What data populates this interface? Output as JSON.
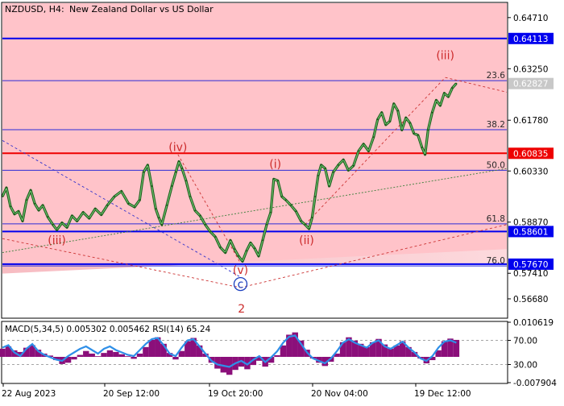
{
  "header": {
    "symbol_timeframe": "NZDUSD, H4:",
    "description": "New Zealand Dollar vs US Dollar"
  },
  "chart_data": {
    "type": "line",
    "price_axis": {
      "range": [
        0.5615,
        0.6512
      ],
      "ticks": [
        "0.64710",
        "0.63250",
        "0.61780",
        "0.60330",
        "0.58870",
        "0.57410",
        "0.56680"
      ],
      "tick_values": [
        0.6471,
        0.6325,
        0.6178,
        0.6033,
        0.5887,
        0.5741,
        0.5668
      ]
    },
    "time_axis": {
      "labels": [
        "22 Aug 2023",
        "20 Sep 12:00",
        "19 Oct 20:00",
        "20 Nov 04:00",
        "19 Dec 12:00"
      ],
      "label_positions": [
        0,
        0.262,
        0.512,
        0.762,
        1.0
      ]
    },
    "current_price": {
      "label": "0.62827",
      "value": 0.62827,
      "color": "#c8c8c8"
    },
    "levels": [
      {
        "label": "0.64113",
        "value": 0.64113,
        "color": "#0000ee"
      },
      {
        "label": "0.60835",
        "value": 0.60835,
        "color": "#ee0000"
      },
      {
        "label": "0.58601",
        "value": 0.58601,
        "color": "#0000ee"
      },
      {
        "label": "0.57670",
        "value": 0.5767,
        "color": "#0000ee"
      }
    ],
    "fibonacci": [
      {
        "label": "23.6",
        "value": 0.6291
      },
      {
        "label": "38.2",
        "value": 0.6151
      },
      {
        "label": "50.0",
        "value": 0.6035
      },
      {
        "label": "61.8",
        "value": 0.5882
      },
      {
        "label": "76.0",
        "value": 0.5762
      }
    ],
    "wave_labels": [
      {
        "text": "(iii)",
        "t": 0.108,
        "price": 0.5827,
        "color": "#cc2b2b",
        "circled": false
      },
      {
        "text": "(iv)",
        "t": 0.348,
        "price": 0.6092,
        "color": "#cc2b2b",
        "circled": false
      },
      {
        "text": "(v)",
        "t": 0.472,
        "price": 0.5742,
        "color": "#cc2b2b",
        "circled": false
      },
      {
        "text": "c",
        "t": 0.472,
        "price": 0.5701,
        "color": "#1a3fbf",
        "circled": true
      },
      {
        "text": "2",
        "t": 0.474,
        "price": 0.5631,
        "color": "#cc2b2b",
        "circled": false
      },
      {
        "text": "(i)",
        "t": 0.541,
        "price": 0.6044,
        "color": "#cc2b2b",
        "circled": false
      },
      {
        "text": "(ii)",
        "t": 0.603,
        "price": 0.5827,
        "color": "#cc2b2b",
        "circled": false
      },
      {
        "text": "(iii)",
        "t": 0.878,
        "price": 0.6355,
        "color": "#cc2b2b",
        "circled": false
      }
    ],
    "price_series": [
      [
        0.0,
        0.596
      ],
      [
        0.008,
        0.5985
      ],
      [
        0.016,
        0.5932
      ],
      [
        0.024,
        0.591
      ],
      [
        0.032,
        0.5918
      ],
      [
        0.04,
        0.589
      ],
      [
        0.048,
        0.595
      ],
      [
        0.056,
        0.5978
      ],
      [
        0.064,
        0.594
      ],
      [
        0.072,
        0.5921
      ],
      [
        0.08,
        0.5935
      ],
      [
        0.09,
        0.5902
      ],
      [
        0.1,
        0.588
      ],
      [
        0.108,
        0.5865
      ],
      [
        0.118,
        0.5885
      ],
      [
        0.128,
        0.5872
      ],
      [
        0.138,
        0.5905
      ],
      [
        0.148,
        0.589
      ],
      [
        0.16,
        0.5915
      ],
      [
        0.172,
        0.5898
      ],
      [
        0.184,
        0.5925
      ],
      [
        0.196,
        0.5908
      ],
      [
        0.208,
        0.5935
      ],
      [
        0.222,
        0.596
      ],
      [
        0.236,
        0.5975
      ],
      [
        0.25,
        0.594
      ],
      [
        0.262,
        0.593
      ],
      [
        0.272,
        0.595
      ],
      [
        0.28,
        0.603
      ],
      [
        0.288,
        0.605
      ],
      [
        0.296,
        0.599
      ],
      [
        0.304,
        0.5925
      ],
      [
        0.31,
        0.59
      ],
      [
        0.316,
        0.588
      ],
      [
        0.326,
        0.5935
      ],
      [
        0.336,
        0.599
      ],
      [
        0.344,
        0.603
      ],
      [
        0.35,
        0.606
      ],
      [
        0.356,
        0.604
      ],
      [
        0.364,
        0.6005
      ],
      [
        0.372,
        0.596
      ],
      [
        0.382,
        0.592
      ],
      [
        0.392,
        0.5905
      ],
      [
        0.402,
        0.588
      ],
      [
        0.412,
        0.586
      ],
      [
        0.422,
        0.5845
      ],
      [
        0.432,
        0.5815
      ],
      [
        0.442,
        0.58
      ],
      [
        0.452,
        0.5835
      ],
      [
        0.46,
        0.581
      ],
      [
        0.468,
        0.579
      ],
      [
        0.476,
        0.5775
      ],
      [
        0.484,
        0.5805
      ],
      [
        0.492,
        0.5828
      ],
      [
        0.5,
        0.5812
      ],
      [
        0.508,
        0.579
      ],
      [
        0.516,
        0.5835
      ],
      [
        0.524,
        0.588
      ],
      [
        0.532,
        0.5915
      ],
      [
        0.538,
        0.601
      ],
      [
        0.546,
        0.6005
      ],
      [
        0.554,
        0.596
      ],
      [
        0.562,
        0.595
      ],
      [
        0.572,
        0.5935
      ],
      [
        0.582,
        0.5918
      ],
      [
        0.592,
        0.589
      ],
      [
        0.6,
        0.588
      ],
      [
        0.608,
        0.5868
      ],
      [
        0.614,
        0.59
      ],
      [
        0.62,
        0.596
      ],
      [
        0.626,
        0.602
      ],
      [
        0.632,
        0.605
      ],
      [
        0.64,
        0.604
      ],
      [
        0.648,
        0.599
      ],
      [
        0.656,
        0.603
      ],
      [
        0.666,
        0.605
      ],
      [
        0.676,
        0.6065
      ],
      [
        0.686,
        0.6035
      ],
      [
        0.696,
        0.6048
      ],
      [
        0.706,
        0.609
      ],
      [
        0.716,
        0.611
      ],
      [
        0.726,
        0.609
      ],
      [
        0.736,
        0.613
      ],
      [
        0.744,
        0.618
      ],
      [
        0.752,
        0.62
      ],
      [
        0.76,
        0.6165
      ],
      [
        0.768,
        0.6175
      ],
      [
        0.776,
        0.6225
      ],
      [
        0.784,
        0.6205
      ],
      [
        0.792,
        0.615
      ],
      [
        0.8,
        0.6185
      ],
      [
        0.808,
        0.617
      ],
      [
        0.816,
        0.614
      ],
      [
        0.824,
        0.6135
      ],
      [
        0.832,
        0.61
      ],
      [
        0.838,
        0.608
      ],
      [
        0.844,
        0.615
      ],
      [
        0.852,
        0.62
      ],
      [
        0.86,
        0.6235
      ],
      [
        0.868,
        0.622
      ],
      [
        0.876,
        0.6255
      ],
      [
        0.884,
        0.6245
      ],
      [
        0.892,
        0.627
      ],
      [
        0.9,
        0.6283
      ]
    ],
    "macd_rsi": {
      "label": "MACD(5,34,5) 0.005302 0.005462 RSI(14) 65.24",
      "axis_ticks": [
        "0.010619",
        "70.00",
        "30.00",
        "-0.007904"
      ],
      "rsi_levels": [
        70,
        30
      ],
      "hist_range": [
        -0.007904,
        0.010619
      ],
      "histogram": [
        0.0025,
        0.0032,
        0.002,
        0.0015,
        0.0028,
        0.0036,
        0.0022,
        0.001,
        0.0004,
        -0.001,
        -0.0022,
        -0.0018,
        -0.0008,
        0.0006,
        0.0018,
        0.001,
        0.0002,
        0.0012,
        0.002,
        0.0015,
        0.0008,
        0.0002,
        -0.0006,
        0.001,
        0.003,
        0.0052,
        0.006,
        0.004,
        0.0012,
        -0.0008,
        0.0018,
        0.0048,
        0.0058,
        0.0035,
        0.001,
        -0.0018,
        -0.0036,
        -0.0048,
        -0.0055,
        -0.004,
        -0.003,
        -0.0038,
        -0.0025,
        -0.0012,
        -0.003,
        -0.0018,
        0.0005,
        0.0035,
        0.0068,
        0.0075,
        0.005,
        0.0022,
        -0.0005,
        -0.0018,
        -0.0028,
        -0.0015,
        0.001,
        0.0045,
        0.006,
        0.005,
        0.004,
        0.003,
        0.0045,
        0.0055,
        0.0038,
        0.0025,
        0.0035,
        0.0048,
        0.003,
        0.0015,
        -0.0005,
        -0.002,
        -0.001,
        0.002,
        0.0048,
        0.0056,
        0.0052
      ],
      "rsi": [
        58,
        62,
        50,
        44,
        56,
        64,
        52,
        46,
        42,
        38,
        36,
        44,
        50,
        56,
        60,
        54,
        48,
        56,
        60,
        54,
        50,
        46,
        44,
        54,
        64,
        72,
        74,
        62,
        48,
        44,
        58,
        70,
        72,
        60,
        48,
        36,
        30,
        28,
        26,
        32,
        36,
        30,
        38,
        44,
        34,
        42,
        52,
        66,
        76,
        78,
        64,
        50,
        40,
        36,
        32,
        40,
        52,
        66,
        72,
        66,
        62,
        58,
        66,
        70,
        60,
        56,
        62,
        68,
        58,
        50,
        40,
        36,
        44,
        58,
        68,
        70,
        66
      ]
    }
  }
}
